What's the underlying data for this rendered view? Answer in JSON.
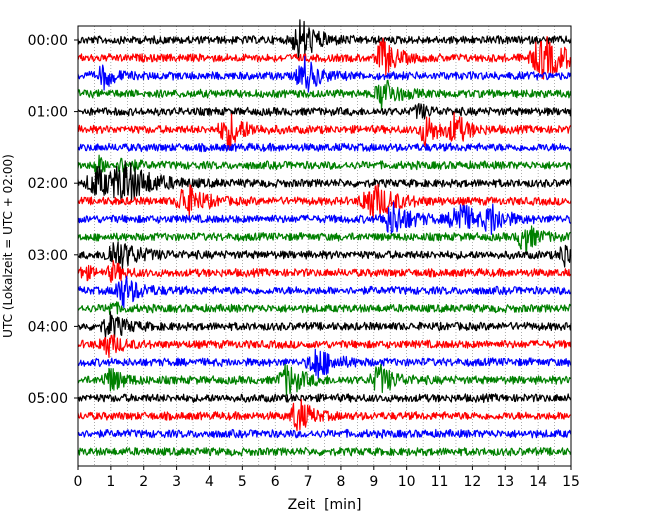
{
  "chart_data": {
    "type": "line",
    "title": "",
    "xlabel": "Zeit  [min]",
    "ylabel": "UTC (Lokalzeit = UTC + 02:00)",
    "xlim": [
      0,
      15
    ],
    "x_ticks": [
      0,
      1,
      2,
      3,
      4,
      5,
      6,
      7,
      8,
      9,
      10,
      11,
      12,
      13,
      14,
      15
    ],
    "y_tick_labels": [
      "00:00",
      "01:00",
      "02:00",
      "03:00",
      "04:00",
      "05:00"
    ],
    "trace_interval_min": 15,
    "traces_per_hour": 4,
    "color_cycle": [
      "#000000",
      "#ff0000",
      "#0000ff",
      "#008000"
    ],
    "grid": "vertical dotted",
    "series": [
      {
        "start_utc": "00:00",
        "color": "#000000",
        "events": [
          {
            "t": 6.8,
            "amp": 1.8,
            "dur": 0.6
          }
        ]
      },
      {
        "start_utc": "00:15",
        "color": "#ff0000",
        "events": [
          {
            "t": 9.3,
            "amp": 1.6,
            "dur": 0.5
          },
          {
            "t": 14.2,
            "amp": 1.8,
            "dur": 0.9
          }
        ]
      },
      {
        "start_utc": "00:30",
        "color": "#0000ff",
        "events": [
          {
            "t": 0.8,
            "amp": 1.0,
            "dur": 0.4
          },
          {
            "t": 6.9,
            "amp": 1.6,
            "dur": 0.5
          }
        ]
      },
      {
        "start_utc": "00:45",
        "color": "#008000",
        "events": [
          {
            "t": 9.3,
            "amp": 1.5,
            "dur": 0.5
          }
        ]
      },
      {
        "start_utc": "01:00",
        "color": "#000000",
        "events": [
          {
            "t": 10.4,
            "amp": 0.6,
            "dur": 0.4
          }
        ]
      },
      {
        "start_utc": "01:15",
        "color": "#ff0000",
        "events": [
          {
            "t": 4.6,
            "amp": 1.5,
            "dur": 0.6
          },
          {
            "t": 10.6,
            "amp": 1.3,
            "dur": 0.5
          },
          {
            "t": 11.5,
            "amp": 1.2,
            "dur": 0.5
          }
        ]
      },
      {
        "start_utc": "01:30",
        "color": "#0000ff",
        "events": []
      },
      {
        "start_utc": "01:45",
        "color": "#008000",
        "events": [
          {
            "t": 0.6,
            "amp": 0.8,
            "dur": 0.3
          },
          {
            "t": 1.4,
            "amp": 0.6,
            "dur": 0.4
          }
        ]
      },
      {
        "start_utc": "02:00",
        "color": "#000000",
        "events": [
          {
            "t": 0.6,
            "amp": 1.3,
            "dur": 0.7
          },
          {
            "t": 1.5,
            "amp": 1.6,
            "dur": 1.0
          }
        ]
      },
      {
        "start_utc": "02:15",
        "color": "#ff0000",
        "events": [
          {
            "t": 3.3,
            "amp": 1.5,
            "dur": 0.6
          },
          {
            "t": 9.0,
            "amp": 1.6,
            "dur": 0.8
          }
        ]
      },
      {
        "start_utc": "02:30",
        "color": "#0000ff",
        "events": [
          {
            "t": 9.6,
            "amp": 1.4,
            "dur": 0.7
          },
          {
            "t": 11.6,
            "amp": 1.5,
            "dur": 0.6
          },
          {
            "t": 12.6,
            "amp": 1.2,
            "dur": 0.5
          }
        ]
      },
      {
        "start_utc": "02:45",
        "color": "#008000",
        "events": [
          {
            "t": 13.6,
            "amp": 1.2,
            "dur": 0.5
          }
        ]
      },
      {
        "start_utc": "03:00",
        "color": "#000000",
        "events": [
          {
            "t": 1.2,
            "amp": 1.3,
            "dur": 0.8
          },
          {
            "t": 14.8,
            "amp": 1.2,
            "dur": 0.3
          }
        ]
      },
      {
        "start_utc": "03:15",
        "color": "#ff0000",
        "events": [
          {
            "t": 0.2,
            "amp": 0.6,
            "dur": 0.3
          },
          {
            "t": 1.1,
            "amp": 0.8,
            "dur": 0.4
          }
        ]
      },
      {
        "start_utc": "03:30",
        "color": "#0000ff",
        "events": [
          {
            "t": 1.4,
            "amp": 1.3,
            "dur": 0.6
          }
        ]
      },
      {
        "start_utc": "03:45",
        "color": "#008000",
        "events": [
          {
            "t": 1.0,
            "amp": 0.5,
            "dur": 0.3
          }
        ]
      },
      {
        "start_utc": "04:00",
        "color": "#000000",
        "events": [
          {
            "t": 1.0,
            "amp": 1.0,
            "dur": 0.6
          }
        ]
      },
      {
        "start_utc": "04:15",
        "color": "#ff0000",
        "events": [
          {
            "t": 0.9,
            "amp": 1.0,
            "dur": 0.5
          }
        ]
      },
      {
        "start_utc": "04:30",
        "color": "#0000ff",
        "events": [
          {
            "t": 7.3,
            "amp": 1.4,
            "dur": 0.6
          }
        ]
      },
      {
        "start_utc": "04:45",
        "color": "#008000",
        "events": [
          {
            "t": 1.0,
            "amp": 1.0,
            "dur": 0.5
          },
          {
            "t": 6.4,
            "amp": 1.3,
            "dur": 0.6
          },
          {
            "t": 9.2,
            "amp": 1.2,
            "dur": 0.6
          }
        ]
      },
      {
        "start_utc": "05:00",
        "color": "#000000",
        "events": []
      },
      {
        "start_utc": "05:15",
        "color": "#ff0000",
        "events": [
          {
            "t": 6.7,
            "amp": 1.5,
            "dur": 0.5
          }
        ]
      },
      {
        "start_utc": "05:30",
        "color": "#0000ff",
        "events": []
      },
      {
        "start_utc": "05:45",
        "color": "#008000",
        "events": []
      }
    ]
  }
}
